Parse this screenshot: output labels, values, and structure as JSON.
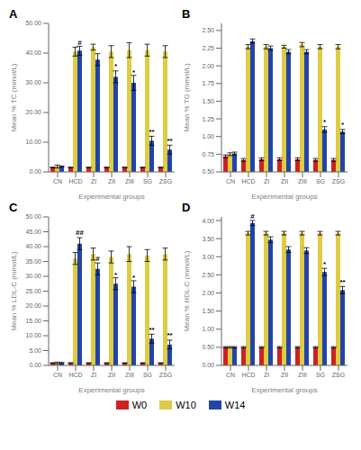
{
  "chart_data": [
    {
      "type": "bar",
      "title": "A",
      "x_label": "Experimental groups",
      "y_label": "Mean % TC (mmol/L)",
      "categories": [
        "CN",
        "HCD",
        "ZI",
        "ZII",
        "ZIII",
        "SG",
        "ZSG"
      ],
      "series": [
        {
          "name": "W0",
          "color": "#cc2222",
          "values": [
            1.5,
            1.5,
            1.5,
            1.5,
            1.5,
            1.5,
            1.5
          ],
          "errors": [
            0.1,
            0.1,
            0.1,
            0.1,
            0.1,
            0.1,
            0.1
          ]
        },
        {
          "name": "W10",
          "color": "#ddcc44",
          "values": [
            1.8,
            40.5,
            42.0,
            40.5,
            41.0,
            41.0,
            40.5
          ],
          "errors": [
            0.5,
            1.5,
            1.0,
            2.0,
            2.5,
            2.0,
            2.0
          ]
        },
        {
          "name": "W14",
          "color": "#2244aa",
          "values": [
            1.8,
            40.8,
            37.8,
            32.0,
            30.0,
            10.5,
            7.5
          ],
          "errors": [
            0.2,
            1.5,
            2.0,
            2.0,
            2.5,
            1.5,
            1.5
          ]
        }
      ],
      "ylim": [
        0,
        50
      ],
      "yticks": [
        {
          "value": 0,
          "label": "0.00"
        },
        {
          "value": 10,
          "label": "10.00"
        },
        {
          "value": 20,
          "label": "20.00"
        },
        {
          "value": 30,
          "label": "30.00"
        },
        {
          "value": 40,
          "label": "40.00"
        },
        {
          "value": 50,
          "label": "50.00"
        }
      ],
      "annotations": [
        {
          "x": "HCD",
          "y": 42.5,
          "text": "#",
          "series": "W14"
        },
        {
          "x": "ZII",
          "y": 34.5,
          "text": "*",
          "series": "W14"
        },
        {
          "x": "ZIII",
          "y": 32.5,
          "text": "*",
          "series": "W14"
        },
        {
          "x": "SG",
          "y": 12.5,
          "text": "**",
          "series": "W14"
        },
        {
          "x": "ZSG",
          "y": 9.5,
          "text": "**",
          "series": "W14"
        }
      ],
      "grid": false,
      "legend": "bottom"
    },
    {
      "type": "bar",
      "title": "B",
      "x_label": "Experimental groups",
      "y_label": "Mean % TG (mmol/L)",
      "categories": [
        "CN",
        "HCD",
        "ZI",
        "ZII",
        "ZIII",
        "SG",
        "ZSG"
      ],
      "series": [
        {
          "name": "W0",
          "color": "#cc2222",
          "values": [
            0.72,
            0.67,
            0.68,
            0.68,
            0.68,
            0.67,
            0.67
          ],
          "errors": [
            0.02,
            0.02,
            0.02,
            0.02,
            0.02,
            0.02,
            0.02
          ]
        },
        {
          "name": "W10",
          "color": "#ddcc44",
          "values": [
            0.75,
            2.27,
            2.27,
            2.27,
            2.3,
            2.27,
            2.27
          ],
          "errors": [
            0.02,
            0.03,
            0.03,
            0.02,
            0.03,
            0.03,
            0.03
          ]
        },
        {
          "name": "W14",
          "color": "#2244aa",
          "values": [
            0.76,
            2.35,
            2.25,
            2.2,
            2.2,
            1.1,
            1.07
          ],
          "errors": [
            0.02,
            0.03,
            0.03,
            0.03,
            0.03,
            0.04,
            0.03
          ]
        }
      ],
      "ylim": [
        0.5,
        2.6
      ],
      "yticks": [
        {
          "value": 0.5,
          "label": "0.50"
        },
        {
          "value": 0.75,
          "label": "0.75"
        },
        {
          "value": 1.0,
          "label": "1.00"
        },
        {
          "value": 1.25,
          "label": "1.25"
        },
        {
          "value": 1.5,
          "label": "1.50"
        },
        {
          "value": 1.75,
          "label": "1.75"
        },
        {
          "value": 2.0,
          "label": "2.00"
        },
        {
          "value": 2.25,
          "label": "2.25"
        },
        {
          "value": 2.5,
          "label": "2.50"
        }
      ],
      "annotations": [
        {
          "x": "SG",
          "y": 1.16,
          "text": "*",
          "series": "W14"
        },
        {
          "x": "ZSG",
          "y": 1.13,
          "text": "*",
          "series": "W14"
        }
      ],
      "grid": false,
      "legend": "bottom"
    },
    {
      "type": "bar",
      "title": "C",
      "x_label": "Experimental groups",
      "y_label": "Mean % LDL-C (mmol/L)",
      "categories": [
        "CN",
        "HCD",
        "ZI",
        "ZII",
        "ZIII",
        "SG",
        "ZSG"
      ],
      "series": [
        {
          "name": "W0",
          "color": "#cc2222",
          "values": [
            0.8,
            0.8,
            0.8,
            0.8,
            0.8,
            0.8,
            0.8
          ],
          "errors": [
            0.1,
            0.1,
            0.1,
            0.1,
            0.1,
            0.1,
            0.1
          ]
        },
        {
          "name": "W10",
          "color": "#ddcc44",
          "values": [
            0.8,
            36.0,
            37.5,
            36.5,
            37.5,
            37.0,
            37.5
          ],
          "errors": [
            0.3,
            2.0,
            2.0,
            2.0,
            2.5,
            2.0,
            2.0
          ]
        },
        {
          "name": "W14",
          "color": "#2244aa",
          "values": [
            0.8,
            41.0,
            32.5,
            27.5,
            26.5,
            9.0,
            7.0
          ],
          "errors": [
            0.2,
            2.0,
            2.0,
            2.0,
            2.0,
            1.5,
            1.5
          ]
        }
      ],
      "ylim": [
        0,
        50
      ],
      "yticks": [
        {
          "value": 0,
          "label": "0.00"
        },
        {
          "value": 5,
          "label": "5.00"
        },
        {
          "value": 10,
          "label": "10.00"
        },
        {
          "value": 15,
          "label": "15.00"
        },
        {
          "value": 20,
          "label": "20.00"
        },
        {
          "value": 25,
          "label": "25.00"
        },
        {
          "value": 30,
          "label": "30.00"
        },
        {
          "value": 35,
          "label": "35.00"
        },
        {
          "value": 40,
          "label": "40.00"
        },
        {
          "value": 45,
          "label": "45.00"
        },
        {
          "value": 50,
          "label": "50.00"
        }
      ],
      "annotations": [
        {
          "x": "HCD",
          "y": 43.5,
          "text": "##",
          "series": "W14"
        },
        {
          "x": "ZI",
          "y": 35.0,
          "text": "#",
          "series": "W14"
        },
        {
          "x": "ZII",
          "y": 29.5,
          "text": "*",
          "series": "W14"
        },
        {
          "x": "ZIII",
          "y": 28.5,
          "text": "*",
          "series": "W14"
        },
        {
          "x": "SG",
          "y": 11.0,
          "text": "**",
          "series": "W14"
        },
        {
          "x": "ZSG",
          "y": 9.0,
          "text": "**",
          "series": "W14"
        }
      ],
      "grid": false,
      "legend": "bottom"
    },
    {
      "type": "bar",
      "title": "D",
      "x_label": "Experimental groups",
      "y_label": "Mean % HDL-C (mmol/L)",
      "categories": [
        "CN",
        "HCD",
        "ZI",
        "ZII",
        "ZIII",
        "SG",
        "ZSG"
      ],
      "series": [
        {
          "name": "W0",
          "color": "#cc2222",
          "values": [
            0.5,
            0.5,
            0.5,
            0.5,
            0.5,
            0.5,
            0.5
          ],
          "errors": [
            0.02,
            0.02,
            0.02,
            0.02,
            0.02,
            0.02,
            0.02
          ]
        },
        {
          "name": "W10",
          "color": "#ddcc44",
          "values": [
            0.5,
            3.65,
            3.65,
            3.65,
            3.65,
            3.65,
            3.65
          ],
          "errors": [
            0.02,
            0.05,
            0.05,
            0.05,
            0.05,
            0.05,
            0.05
          ]
        },
        {
          "name": "W14",
          "color": "#2244aa",
          "values": [
            0.5,
            3.93,
            3.47,
            3.2,
            3.17,
            2.58,
            2.08
          ],
          "errors": [
            0.02,
            0.07,
            0.08,
            0.08,
            0.08,
            0.1,
            0.1
          ]
        }
      ],
      "ylim": [
        0,
        4.1
      ],
      "yticks": [
        {
          "value": 0,
          "label": "0.00"
        },
        {
          "value": 0.5,
          "label": "0.50"
        },
        {
          "value": 1.0,
          "label": "1.00"
        },
        {
          "value": 1.5,
          "label": "1.50"
        },
        {
          "value": 2.0,
          "label": "2.00"
        },
        {
          "value": 2.5,
          "label": "2.50"
        },
        {
          "value": 3.0,
          "label": "3.00"
        },
        {
          "value": 3.5,
          "label": "3.50"
        },
        {
          "value": 4.0,
          "label": "4.00"
        }
      ],
      "annotations": [
        {
          "x": "HCD",
          "y": 4.02,
          "text": "#",
          "series": "W14"
        },
        {
          "x": "SG",
          "y": 2.72,
          "text": "*",
          "series": "W14"
        },
        {
          "x": "ZSG",
          "y": 2.22,
          "text": "**",
          "series": "W14"
        }
      ],
      "grid": false,
      "legend": "bottom"
    }
  ]
}
